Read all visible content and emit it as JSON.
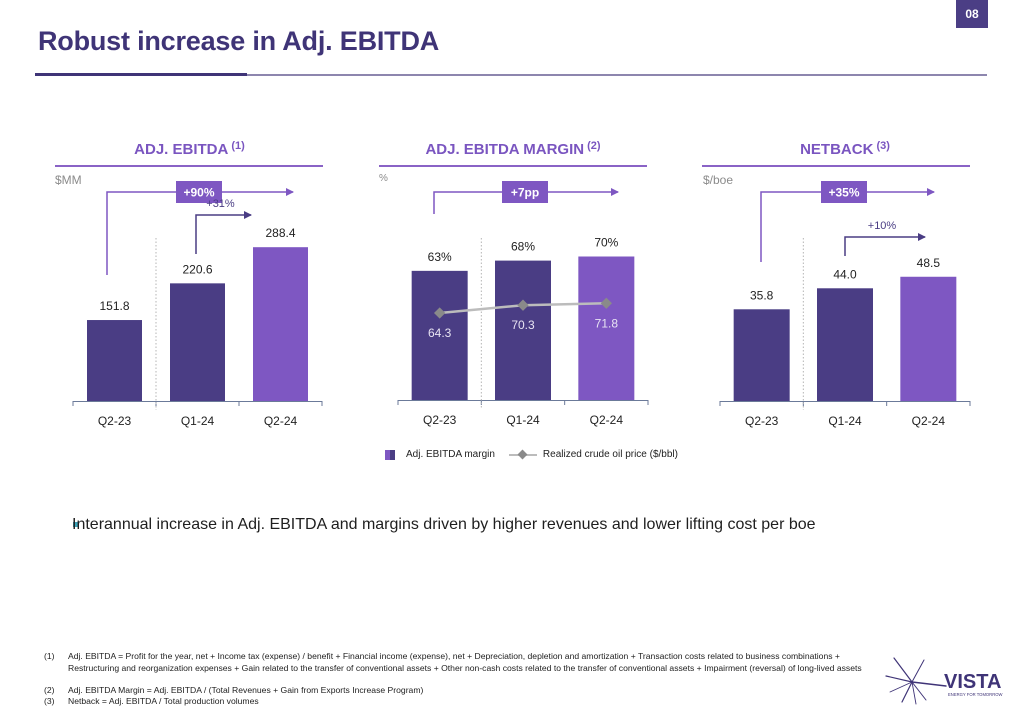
{
  "page": {
    "number": "08",
    "title": "Robust increase in Adj. EBITDA"
  },
  "colors": {
    "dark_bar": "#4a3d84",
    "accent_bar": "#7e57c2",
    "title": "#3f3477",
    "badge": "#7e57c2",
    "line": "#bcbcbc",
    "marker": "#8a8a8a",
    "bullet": "#3aa0b5"
  },
  "chart_data": [
    {
      "type": "bar",
      "title": "ADJ. EBITDA",
      "footnote_ref": "(1)",
      "unit": "$MM",
      "categories": [
        "Q2-23",
        "Q1-24",
        "Q2-24"
      ],
      "values": [
        151.8,
        220.6,
        288.4
      ],
      "labels": [
        "151.8",
        "220.6",
        "288.4"
      ],
      "ylim": [
        0,
        330
      ],
      "annotations": {
        "long_change": "+90%",
        "short_change": "+31%"
      }
    },
    {
      "type": "bar",
      "title": "ADJ. EBITDA MARGIN",
      "footnote_ref": "(2)",
      "unit": "%",
      "categories": [
        "Q2-23",
        "Q1-24",
        "Q2-24"
      ],
      "values": [
        63,
        68,
        70
      ],
      "labels": [
        "63%",
        "68%",
        "70%"
      ],
      "ylim": [
        0,
        100
      ],
      "line_series": {
        "name": "Realized crude oil price ($/bbl)",
        "values": [
          64.3,
          70.3,
          71.8
        ],
        "labels": [
          "64.3",
          "70.3",
          "71.8"
        ]
      },
      "legend": {
        "bar_label": "Adj. EBITDA margin",
        "line_label": "Realized crude oil price ($/bbl)",
        "placement": "bottom"
      },
      "annotations": {
        "long_change": "+7pp"
      }
    },
    {
      "type": "bar",
      "title": "NETBACK",
      "footnote_ref": "(3)",
      "unit": "$/boe",
      "categories": [
        "Q2-23",
        "Q1-24",
        "Q2-24"
      ],
      "values": [
        35.8,
        44.0,
        48.5
      ],
      "labels": [
        "35.8",
        "44.0",
        "48.5"
      ],
      "ylim": [
        0,
        73
      ],
      "annotations": {
        "long_change": "+35%",
        "short_change": "+10%"
      }
    }
  ],
  "bullet": "Interannual increase in Adj. EBITDA and margins driven by higher revenues and lower lifting cost per boe",
  "footnotes": [
    {
      "num": "(1)",
      "text": "Adj. EBITDA = Profit for the year, net + Income tax (expense) / benefit + Financial income (expense), net + Depreciation, depletion and amortization + Transaction costs related to business combinations + Restructuring and reorganization expenses + Gain related to the transfer of conventional assets + Other non-cash costs related to the transfer of conventional assets + Impairment (reversal) of long-lived assets"
    },
    {
      "num": "(2)",
      "text": "Adj. EBITDA Margin = Adj. EBITDA / (Total Revenues + Gain from Exports Increase Program)"
    },
    {
      "num": "(3)",
      "text": "Netback = Adj. EBITDA / Total production volumes"
    }
  ],
  "logo": {
    "name": "VISTA",
    "tagline": "ENERGY FOR TOMORROW"
  }
}
